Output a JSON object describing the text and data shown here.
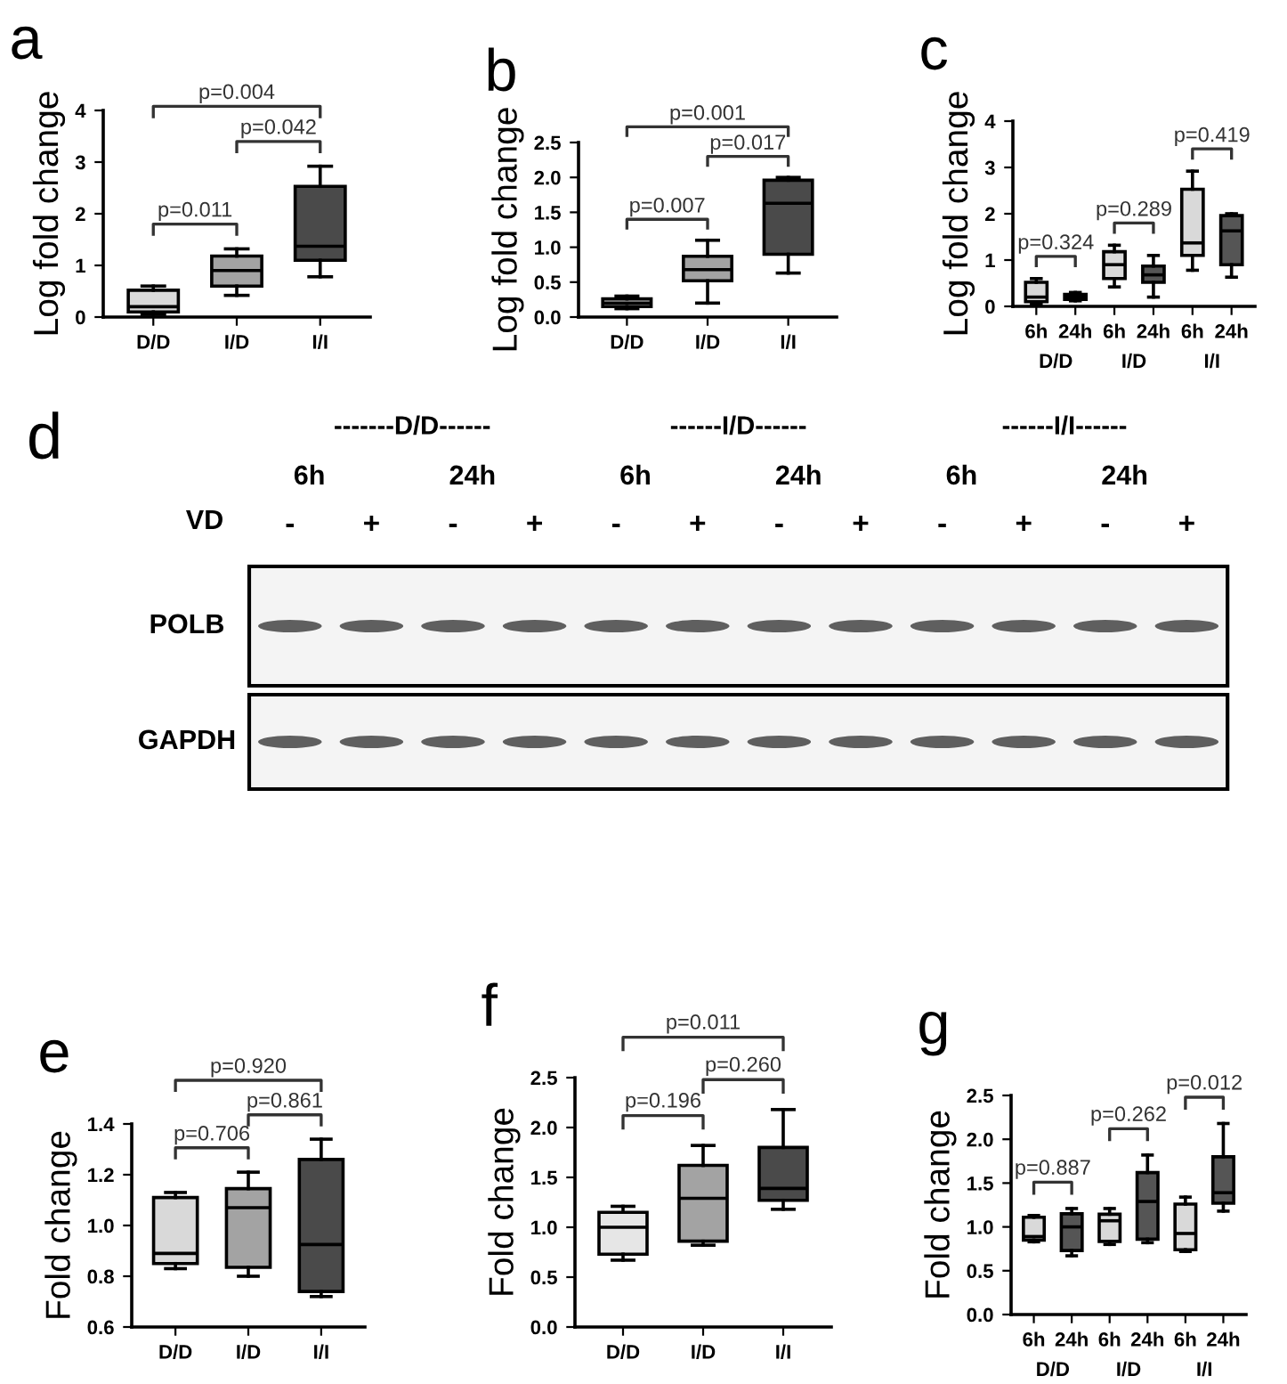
{
  "chart_data": [
    {
      "type": "box",
      "title": "a",
      "ylabel": "Log fold change",
      "categories": [
        "D/D",
        "I/D",
        "I/I"
      ],
      "colors": [
        "#d9d9d9",
        "#a3a3a3",
        "#4a4a4a"
      ],
      "ylim": [
        0,
        4
      ],
      "yticks": [
        0,
        1,
        2,
        3,
        4
      ],
      "annotations": [
        "p=0.011",
        "p=0.042",
        "p=0.004"
      ],
      "boxes": [
        {
          "low": 0.05,
          "q1": 0.1,
          "median": 0.2,
          "q3": 0.52,
          "high": 0.6
        },
        {
          "low": 0.42,
          "q1": 0.6,
          "median": 0.9,
          "q3": 1.18,
          "high": 1.32
        },
        {
          "low": 0.78,
          "q1": 1.1,
          "median": 1.37,
          "q3": 2.53,
          "high": 2.92
        }
      ]
    },
    {
      "type": "box",
      "title": "b",
      "ylabel": "Log fold change",
      "categories": [
        "D/D",
        "I/D",
        "I/I"
      ],
      "colors": [
        "#d9d9d9",
        "#a3a3a3",
        "#4a4a4a"
      ],
      "ylim": [
        0,
        2.5
      ],
      "yticks": [
        {
          "value": 0,
          "label": "0.0"
        },
        0.5,
        {
          "value": 1,
          "label": "1.0"
        },
        1.5,
        {
          "value": 2,
          "label": "2.0"
        },
        2.5
      ],
      "annotations": [
        "p=0.007",
        "p=0.017",
        "p=0.001"
      ],
      "boxes": [
        {
          "low": 0.12,
          "q1": 0.15,
          "median": 0.2,
          "q3": 0.26,
          "high": 0.3
        },
        {
          "low": 0.2,
          "q1": 0.52,
          "median": 0.68,
          "q3": 0.87,
          "high": 1.1
        },
        {
          "low": 0.63,
          "q1": 0.9,
          "median": 1.63,
          "q3": 1.96,
          "high": 2.0
        }
      ]
    },
    {
      "type": "box",
      "title": "c",
      "ylabel": "Log fold change",
      "categories": [
        "6h",
        "24h",
        "6h",
        "24h",
        "6h",
        "24h"
      ],
      "colors": [
        "#d9d9d9",
        "#555555",
        "#d9d9d9",
        "#555555",
        "#d9d9d9",
        "#555555"
      ],
      "ylim": [
        0,
        4
      ],
      "yticks": [
        0,
        1,
        2,
        3,
        4
      ],
      "annotations": [
        "p=0.324",
        "p=0.289",
        "p=0.419",
        "D/D",
        "I/D",
        "I/I"
      ],
      "boxes": [
        {
          "low": 0.05,
          "q1": 0.1,
          "median": 0.2,
          "q3": 0.52,
          "high": 0.6
        },
        {
          "low": 0.12,
          "q1": 0.15,
          "median": 0.2,
          "q3": 0.26,
          "high": 0.3
        },
        {
          "low": 0.42,
          "q1": 0.6,
          "median": 0.9,
          "q3": 1.18,
          "high": 1.32
        },
        {
          "low": 0.2,
          "q1": 0.52,
          "median": 0.68,
          "q3": 0.87,
          "high": 1.1
        },
        {
          "low": 0.78,
          "q1": 1.1,
          "median": 1.37,
          "q3": 2.53,
          "high": 2.92
        },
        {
          "low": 0.63,
          "q1": 0.9,
          "median": 1.63,
          "q3": 1.96,
          "high": 2.0
        }
      ]
    },
    {
      "type": "other",
      "title": "d",
      "annotations": [
        "-------D/D------",
        "------I/D------",
        "------I/I------",
        "6h",
        "24h",
        "6h",
        "24h",
        "6h",
        "24h",
        "VD",
        "-",
        "+",
        "-",
        "+",
        "-",
        "+",
        "-",
        "+",
        "-",
        "+",
        "-",
        "+",
        "POLB",
        "GAPDH"
      ]
    },
    {
      "type": "box",
      "title": "e",
      "ylabel": "Fold change",
      "categories": [
        "D/D",
        "I/D",
        "I/I"
      ],
      "colors": [
        "#d9d9d9",
        "#a3a3a3",
        "#4a4a4a"
      ],
      "ylim": [
        0.6,
        1.4
      ],
      "yticks": [
        0.6,
        0.8,
        {
          "value": 1,
          "label": "1.0"
        },
        1.2,
        1.4
      ],
      "annotations": [
        "p=0.706",
        "p=0.861",
        "p=0.920"
      ],
      "boxes": [
        {
          "low": 0.83,
          "q1": 0.85,
          "median": 0.89,
          "q3": 1.11,
          "high": 1.13
        },
        {
          "low": 0.8,
          "q1": 0.835,
          "median": 1.07,
          "q3": 1.145,
          "high": 1.21
        },
        {
          "low": 0.72,
          "q1": 0.74,
          "median": 0.925,
          "q3": 1.26,
          "high": 1.34
        }
      ]
    },
    {
      "type": "box",
      "title": "f",
      "ylabel": "Fold change",
      "categories": [
        "D/D",
        "I/D",
        "I/I"
      ],
      "colors": [
        "#e6e6e6",
        "#a3a3a3",
        "#4a4a4a"
      ],
      "ylim": [
        0,
        2.5
      ],
      "yticks": [
        {
          "value": 0,
          "label": "0.0"
        },
        0.5,
        {
          "value": 1,
          "label": "1.0"
        },
        1.5,
        {
          "value": 2,
          "label": "2.0"
        },
        2.5
      ],
      "annotations": [
        "p=0.196",
        "p=0.260",
        "p=0.011"
      ],
      "boxes": [
        {
          "low": 0.67,
          "q1": 0.73,
          "median": 1.0,
          "q3": 1.15,
          "high": 1.21
        },
        {
          "low": 0.82,
          "q1": 0.86,
          "median": 1.29,
          "q3": 1.62,
          "high": 1.82
        },
        {
          "low": 1.18,
          "q1": 1.27,
          "median": 1.39,
          "q3": 1.8,
          "high": 2.18
        }
      ]
    },
    {
      "type": "box",
      "title": "g",
      "ylabel": "Fold change",
      "categories": [
        "6h",
        "24h",
        "6h",
        "24h",
        "6h",
        "24h"
      ],
      "colors": [
        "#d9d9d9",
        "#555555",
        "#d9d9d9",
        "#555555",
        "#d9d9d9",
        "#555555"
      ],
      "ylim": [
        0,
        2.5
      ],
      "yticks": [
        {
          "value": 0,
          "label": "0.0"
        },
        0.5,
        {
          "value": 1,
          "label": "1.0"
        },
        1.5,
        {
          "value": 2,
          "label": "2.0"
        },
        2.5
      ],
      "annotations": [
        "p=0.887",
        "p=0.262",
        "p=0.012",
        "D/D",
        "I/D",
        "I/I"
      ],
      "boxes": [
        {
          "low": 0.83,
          "q1": 0.85,
          "median": 0.89,
          "q3": 1.11,
          "high": 1.13
        },
        {
          "low": 0.67,
          "q1": 0.73,
          "median": 1.0,
          "q3": 1.15,
          "high": 1.21
        },
        {
          "low": 0.8,
          "q1": 0.835,
          "median": 1.07,
          "q3": 1.145,
          "high": 1.21
        },
        {
          "low": 0.82,
          "q1": 0.86,
          "median": 1.29,
          "q3": 1.62,
          "high": 1.82
        },
        {
          "low": 0.72,
          "q1": 0.74,
          "median": 0.925,
          "q3": 1.26,
          "high": 1.34
        },
        {
          "low": 1.18,
          "q1": 1.27,
          "median": 1.39,
          "q3": 1.8,
          "high": 2.18
        }
      ]
    }
  ]
}
